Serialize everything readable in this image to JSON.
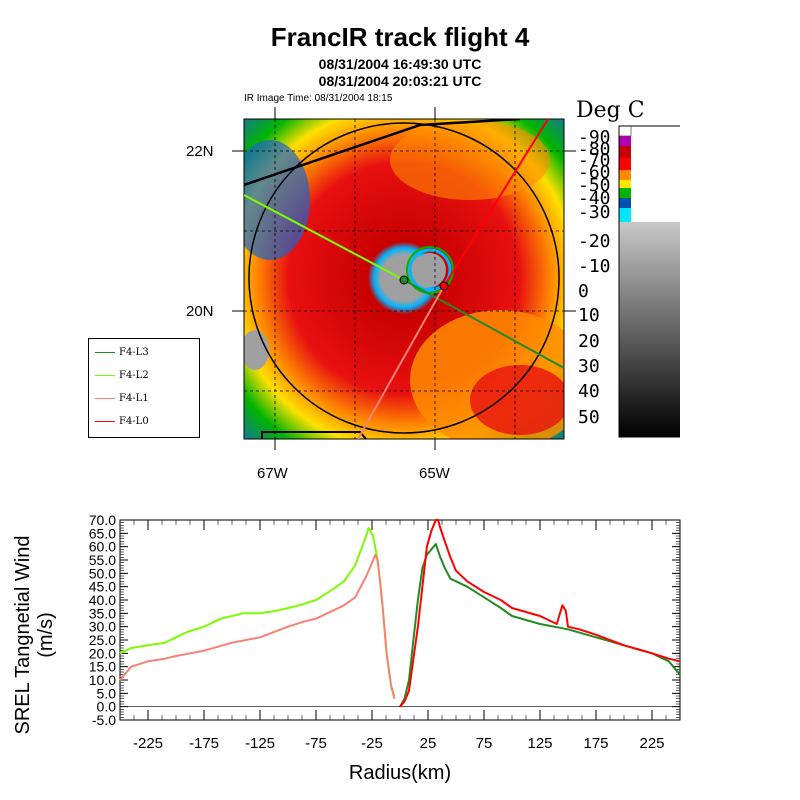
{
  "header": {
    "title": "FrancIR track flight 4",
    "time_start": "08/31/2004 16:49:30 UTC",
    "time_end": "08/31/2004 20:03:21 UTC",
    "ir_time": "IR Image Time: 08/31/2004 18:15"
  },
  "colorbar": {
    "title": "Deg C",
    "labels": [
      "-90",
      "-80",
      "-70",
      "-60",
      "-50",
      "-40",
      "-30",
      "-20",
      "-10",
      "0",
      "10",
      "20",
      "30",
      "40",
      "50"
    ],
    "colors": [
      "#ffffff",
      "#b000b0",
      "#c80000",
      "#ff0000",
      "#ff8c00",
      "#ffe600",
      "#00b400",
      "#0050b4",
      "#00e6ff",
      "#c8c8c8",
      "#a0a0a0",
      "#787878",
      "#505050",
      "#282828",
      "#000000"
    ]
  },
  "map": {
    "lat_labels": [
      "22N",
      "20N"
    ],
    "lon_labels": [
      "67W",
      "65W"
    ],
    "legend": [
      {
        "name": "F4-L3",
        "color": "#228b22"
      },
      {
        "name": "F4-L2",
        "color": "#7cfc00"
      },
      {
        "name": "F4-L1",
        "color": "#fa8072"
      },
      {
        "name": "F4-L0",
        "color": "#ff0000"
      }
    ]
  },
  "chart_data": {
    "type": "line",
    "xlabel": "Radius(km)",
    "ylabel": "SREL Tangnetial Wind (m/s)",
    "xlim": [
      -250,
      250
    ],
    "ylim": [
      -5,
      70
    ],
    "xticks": [
      -225,
      -175,
      -125,
      -75,
      -25,
      25,
      75,
      125,
      175,
      225
    ],
    "yticks": [
      -5,
      0,
      5,
      10,
      15,
      20,
      25,
      30,
      35,
      40,
      45,
      50,
      55,
      60,
      65,
      70
    ],
    "ytick_labels": [
      "-5.0",
      "0.0",
      "5.0",
      "10.0",
      "15.0",
      "20.0",
      "25.0",
      "30.0",
      "35.0",
      "40.0",
      "45.0",
      "50.0",
      "55.0",
      "60.0",
      "65.0",
      "70.0"
    ],
    "series": [
      {
        "color": "#7cfc00",
        "x": [
          -250,
          -240,
          -225,
          -210,
          -200,
          -190,
          -175,
          -160,
          -150,
          -140,
          -125,
          -110,
          -100,
          -90,
          -75,
          -60,
          -50,
          -40,
          -32,
          -28,
          -24,
          -20,
          -16,
          -12,
          -8,
          -5
        ],
        "y": [
          20,
          22,
          23,
          24,
          26,
          28,
          30,
          33,
          34,
          35,
          35,
          36,
          37,
          38,
          40,
          44,
          47,
          53,
          62,
          67,
          64,
          55,
          40,
          20,
          8,
          4
        ]
      },
      {
        "color": "#fa8072",
        "x": [
          -250,
          -240,
          -225,
          -210,
          -200,
          -175,
          -150,
          -125,
          -100,
          -85,
          -75,
          -60,
          -50,
          -40,
          -30,
          -22,
          -20,
          -18,
          -15,
          -12,
          -8,
          -5
        ],
        "y": [
          10,
          15,
          17,
          18,
          19,
          21,
          24,
          26,
          30,
          32,
          33,
          36,
          38,
          41,
          49,
          57,
          55,
          48,
          35,
          20,
          8,
          3
        ]
      },
      {
        "color": "#228b22",
        "x": [
          0,
          4,
          8,
          12,
          16,
          20,
          24,
          28,
          32,
          36,
          40,
          45,
          50,
          60,
          75,
          90,
          100,
          125,
          150,
          175,
          200,
          225,
          240,
          250
        ],
        "y": [
          0,
          3,
          10,
          25,
          40,
          52,
          57,
          59,
          61,
          56,
          52,
          48,
          47,
          45,
          41,
          37,
          34,
          31,
          29,
          26,
          23,
          20,
          17,
          12
        ]
      },
      {
        "color": "#ff0000",
        "x": [
          0,
          4,
          8,
          12,
          16,
          20,
          24,
          28,
          32,
          34,
          36,
          40,
          45,
          50,
          60,
          75,
          90,
          100,
          125,
          140,
          145,
          148,
          150,
          160,
          175,
          200,
          225,
          240,
          250
        ],
        "y": [
          0,
          2,
          6,
          18,
          30,
          45,
          60,
          66,
          70,
          70,
          67,
          62,
          56,
          51,
          47,
          43,
          40,
          37,
          34,
          31,
          38,
          36,
          30,
          29,
          27,
          23,
          20,
          18,
          17
        ]
      }
    ]
  }
}
